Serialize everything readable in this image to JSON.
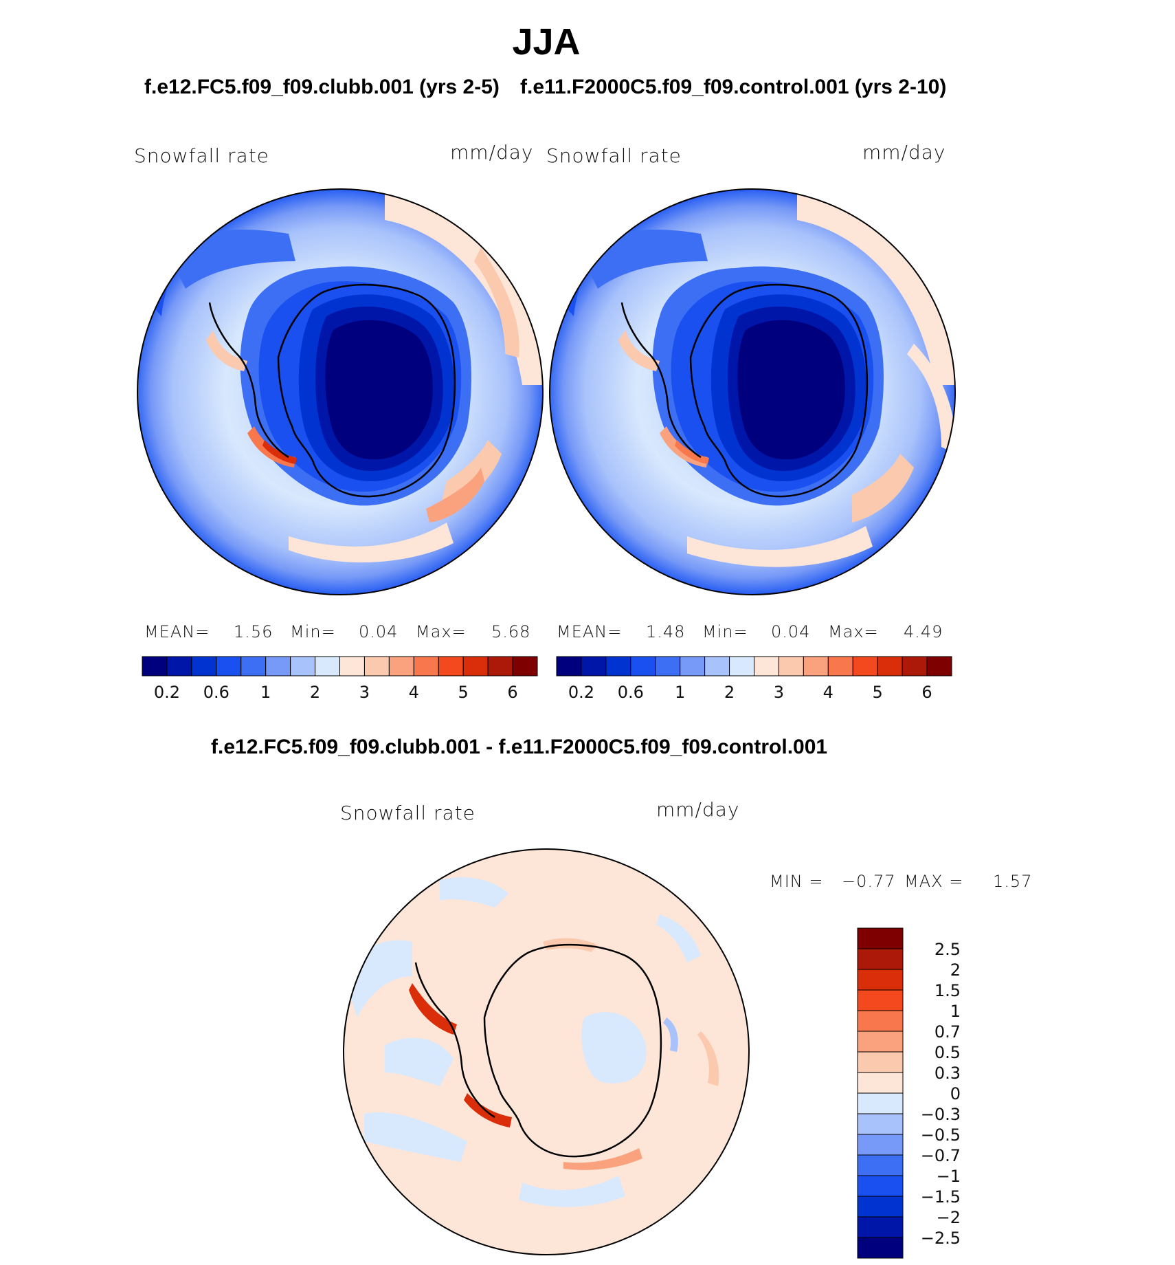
{
  "figure": {
    "title": "JJA",
    "left_header": "f.e12.FC5.f09_f09.clubb.001 (yrs 2-5)",
    "right_header": "f.e11.F2000C5.f09_f09.control.001 (yrs 2-10)",
    "diff_header": "f.e12.FC5.f09_f09.clubb.001 - f.e11.F2000C5.f09_f09.control.001"
  },
  "panel_left": {
    "variable": "Snowfall rate",
    "units": "mm/day",
    "mean_label": "MEAN=",
    "mean_value": "1.56",
    "min_label": "Min=",
    "min_value": "0.04",
    "max_label": "Max=",
    "max_value": "5.68"
  },
  "panel_right": {
    "variable": "Snowfall rate",
    "units": "mm/day",
    "mean_label": "MEAN=",
    "mean_value": "1.48",
    "min_label": "Min=",
    "min_value": "0.04",
    "max_label": "Max=",
    "max_value": "4.49"
  },
  "panel_diff": {
    "variable": "Snowfall rate",
    "units": "mm/day",
    "min_label": "MIN =",
    "min_value": "−0.77",
    "max_label": "MAX =",
    "max_value": "1.57"
  },
  "chart_data": {
    "type": "map",
    "projection": "south polar stereographic",
    "region": "Antarctica / Southern Ocean",
    "season": "JJA",
    "abs_colorbar": {
      "colors": [
        "#00007f",
        "#0016a8",
        "#0033d0",
        "#1a4ff0",
        "#3d6ff4",
        "#7799f7",
        "#a8c2fb",
        "#d8e8fd",
        "#fde6d8",
        "#fbc9ae",
        "#f9a27d",
        "#f9774c",
        "#f4491e",
        "#d92e09",
        "#ad1908",
        "#7f0000"
      ],
      "tick_labels": [
        "0.2",
        "0.6",
        "1",
        "2",
        "3",
        "4",
        "5",
        "6"
      ]
    },
    "diff_colorbar": {
      "colors": [
        "#7f0000",
        "#ad1908",
        "#d92e09",
        "#f4491e",
        "#f9774c",
        "#f9a27d",
        "#fbc9ae",
        "#fde6d8",
        "#d8e8fd",
        "#a8c2fb",
        "#7799f7",
        "#3d6ff4",
        "#1a4ff0",
        "#0033d0",
        "#0016a8",
        "#00007f"
      ],
      "tick_labels": [
        "2.5",
        "2",
        "1.5",
        "1",
        "0.7",
        "0.5",
        "0.3",
        "0",
        "−0.3",
        "−0.5",
        "−0.7",
        "−1",
        "−1.5",
        "−2",
        "−2.5"
      ]
    }
  }
}
